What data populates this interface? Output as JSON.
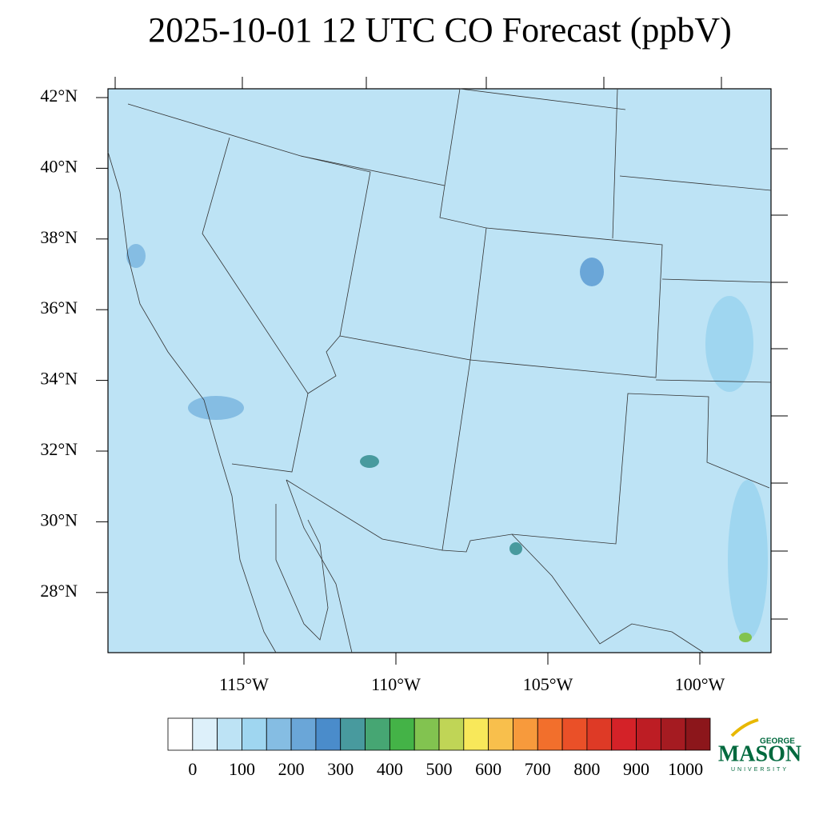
{
  "map": {
    "title": "2025-10-01 12 UTC CO Forecast (ppbV)",
    "lat_labels": [
      "42°N",
      "40°N",
      "38°N",
      "36°N",
      "34°N",
      "32°N",
      "30°N",
      "28°N"
    ],
    "lon_labels": [
      "115°W",
      "110°W",
      "105°W",
      "100°W"
    ],
    "colorbar": {
      "ticks": [
        0,
        100,
        200,
        300,
        400,
        500,
        600,
        700,
        800,
        900,
        1000
      ],
      "colors": [
        "#ffffff",
        "#ddf0fa",
        "#bde3f5",
        "#9fd6f0",
        "#85bde3",
        "#6aa6d8",
        "#4a8ccb",
        "#489a9e",
        "#46a673",
        "#44b347",
        "#82c350",
        "#c0d556",
        "#f8e85a",
        "#f8bf4c",
        "#f79a3c",
        "#f26f2c",
        "#ea5028",
        "#de3a26",
        "#d42228",
        "#bd1d24",
        "#a51b21",
        "#8c161b"
      ]
    },
    "logo": {
      "top": "GEORGE",
      "main": "MASON",
      "bottom": "UNIVERSITY"
    }
  }
}
